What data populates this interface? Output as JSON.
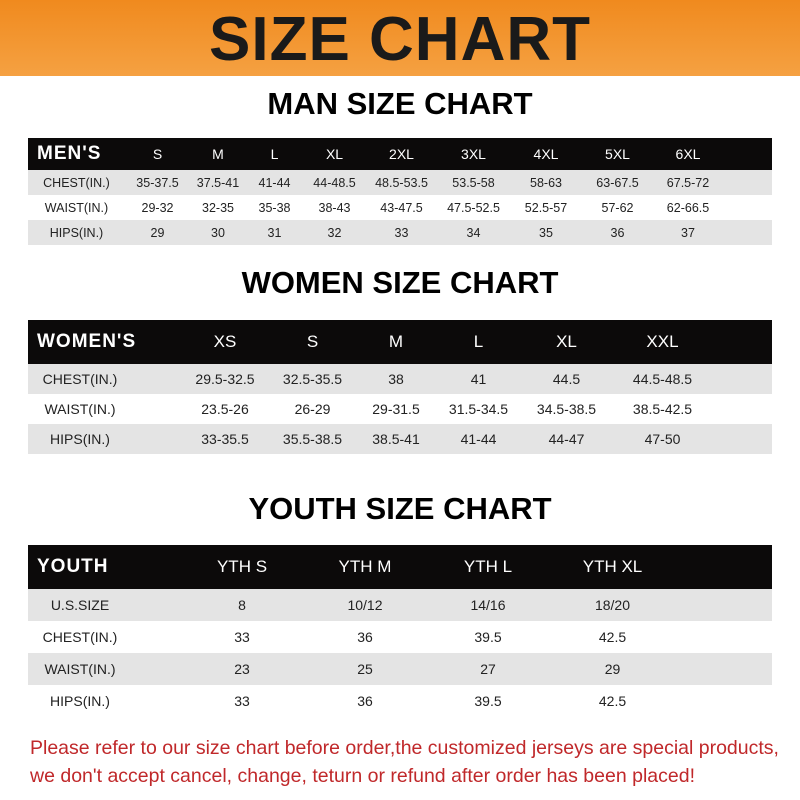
{
  "banner": {
    "title": "SIZE CHART",
    "color": "#f08a1e"
  },
  "men": {
    "title": "MAN SIZE CHART",
    "header": [
      "MEN'S",
      "S",
      "M",
      "L",
      "XL",
      "2XL",
      "3XL",
      "4XL",
      "5XL",
      "6XL"
    ],
    "rows": [
      [
        "CHEST(IN.)",
        "35-37.5",
        "37.5-41",
        "41-44",
        "44-48.5",
        "48.5-53.5",
        "53.5-58",
        "58-63",
        "63-67.5",
        "67.5-72"
      ],
      [
        "WAIST(IN.)",
        "29-32",
        "32-35",
        "35-38",
        "38-43",
        "43-47.5",
        "47.5-52.5",
        "52.5-57",
        "57-62",
        "62-66.5"
      ],
      [
        "HIPS(IN.)",
        "29",
        "30",
        "31",
        "32",
        "33",
        "34",
        "35",
        "36",
        "37"
      ]
    ]
  },
  "women": {
    "title": "WOMEN SIZE CHART",
    "header": [
      "WOMEN'S",
      "XS",
      "S",
      "M",
      "L",
      "XL",
      "XXL"
    ],
    "rows": [
      [
        "CHEST(IN.)",
        "29.5-32.5",
        "32.5-35.5",
        "38",
        "41",
        "44.5",
        "44.5-48.5"
      ],
      [
        "WAIST(IN.)",
        "23.5-26",
        "26-29",
        "29-31.5",
        "31.5-34.5",
        "34.5-38.5",
        "38.5-42.5"
      ],
      [
        "HIPS(IN.)",
        "33-35.5",
        "35.5-38.5",
        "38.5-41",
        "41-44",
        "44-47",
        "47-50"
      ]
    ]
  },
  "youth": {
    "title": "YOUTH SIZE CHART",
    "header": [
      "YOUTH",
      "YTH S",
      "YTH M",
      "YTH L",
      "YTH XL"
    ],
    "rows": [
      [
        "U.S.SIZE",
        "8",
        "10/12",
        "14/16",
        "18/20"
      ],
      [
        "CHEST(IN.)",
        "33",
        "36",
        "39.5",
        "42.5"
      ],
      [
        "WAIST(IN.)",
        "23",
        "25",
        "27",
        "29"
      ],
      [
        "HIPS(IN.)",
        "33",
        "36",
        "39.5",
        "42.5"
      ]
    ]
  },
  "notice": {
    "line1": "Please refer to our size chart before order,the customized jerseys are special products,",
    "line2": "we don't accept cancel, change, teturn or refund after order has been placed!",
    "color": "#c0282a"
  }
}
